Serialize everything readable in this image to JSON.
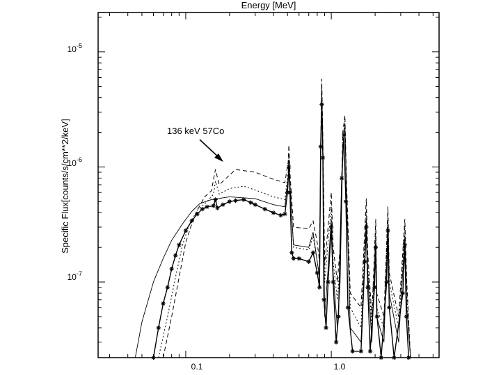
{
  "chart_data": {
    "type": "line",
    "title": "",
    "xlabel": "Energy [MeV]",
    "ylabel": "Specific Flux[counts/s/cm**2/keV]",
    "x_scale": "log",
    "y_scale": "log",
    "xlim": [
      0.025,
      5.5
    ],
    "ylim": [
      2.2e-08,
      2.2e-05
    ],
    "x_ticks": [
      {
        "value": 0.1,
        "label": "0.1"
      },
      {
        "value": 1.0,
        "label": "1.0"
      }
    ],
    "y_ticks": [
      {
        "value": 1e-07,
        "mant": "10",
        "exp": "-7"
      },
      {
        "value": 1e-06,
        "mant": "10",
        "exp": "-6"
      },
      {
        "value": 1e-05,
        "mant": "10",
        "exp": "-5"
      }
    ],
    "grid": false,
    "legend": "none",
    "annotations": [
      {
        "text": "136 keV 57Co",
        "x": 0.155,
        "y": 9e-07
      }
    ],
    "series": [
      {
        "style": "solid",
        "markers": false,
        "points": [
          [
            0.045,
            2.2e-08
          ],
          [
            0.05,
            4.5e-08
          ],
          [
            0.06,
            1e-07
          ],
          [
            0.07,
            1.6e-07
          ],
          [
            0.08,
            2.3e-07
          ],
          [
            0.095,
            3.2e-07
          ],
          [
            0.11,
            4.1e-07
          ],
          [
            0.125,
            4.8e-07
          ],
          [
            0.15,
            5.2e-07
          ],
          [
            0.2,
            5.5e-07
          ],
          [
            0.3,
            5.3e-07
          ],
          [
            0.4,
            4.7e-07
          ],
          [
            0.48,
            4.5e-07
          ],
          [
            0.505,
            8e-07
          ],
          [
            0.511,
            1.15e-06
          ],
          [
            0.52,
            7e-07
          ],
          [
            0.55,
            2.1e-07
          ],
          [
            0.7,
            2e-07
          ],
          [
            0.75,
            2.7e-07
          ],
          [
            0.8,
            1.5e-07
          ],
          [
            0.83,
            1.1e-07
          ],
          [
            0.85,
            2e-06
          ],
          [
            0.86,
            4.8e-06
          ],
          [
            0.875,
            1.5e-06
          ],
          [
            0.9,
            5e-08
          ],
          [
            0.95,
            1.3e-07
          ],
          [
            1.0,
            3.5e-07
          ],
          [
            1.03,
            1.2e-07
          ],
          [
            1.1,
            4e-08
          ],
          [
            1.15,
            1e-07
          ],
          [
            1.2,
            1.5e-06
          ],
          [
            1.24,
            2.3e-06
          ],
          [
            1.27,
            6e-07
          ],
          [
            1.35,
            4e-08
          ],
          [
            1.6,
            3e-08
          ],
          [
            1.74,
            3.5e-07
          ],
          [
            1.78,
            1.2e-07
          ],
          [
            1.9,
            3e-08
          ],
          [
            2.02,
            2.4e-07
          ],
          [
            2.05,
            5e-08
          ],
          [
            2.3,
            3e-08
          ],
          [
            2.45,
            3.3e-07
          ],
          [
            2.5,
            8e-08
          ],
          [
            2.9,
            3e-08
          ],
          [
            3.2,
            2.5e-07
          ],
          [
            3.3,
            6e-08
          ],
          [
            3.5,
            2.2e-08
          ]
        ]
      },
      {
        "style": "dashed",
        "markers": false,
        "points": [
          [
            0.07,
            2.2e-08
          ],
          [
            0.08,
            5e-08
          ],
          [
            0.09,
            1.1e-07
          ],
          [
            0.1,
            2.2e-07
          ],
          [
            0.11,
            3.2e-07
          ],
          [
            0.12,
            4.2e-07
          ],
          [
            0.135,
            5.5e-07
          ],
          [
            0.15,
            6.2e-07
          ],
          [
            0.16,
            9.5e-07
          ],
          [
            0.17,
            7e-07
          ],
          [
            0.2,
            8.5e-07
          ],
          [
            0.22,
            9.5e-07
          ],
          [
            0.3,
            9e-07
          ],
          [
            0.4,
            7.8e-07
          ],
          [
            0.48,
            7.3e-07
          ],
          [
            0.505,
            1.1e-06
          ],
          [
            0.511,
            1.55e-06
          ],
          [
            0.52,
            9e-07
          ],
          [
            0.55,
            3e-07
          ],
          [
            0.7,
            2.9e-07
          ],
          [
            0.75,
            3.4e-07
          ],
          [
            0.8,
            2.2e-07
          ],
          [
            0.83,
            1.5e-07
          ],
          [
            0.85,
            2.5e-06
          ],
          [
            0.86,
            5.8e-06
          ],
          [
            0.875,
            1.8e-06
          ],
          [
            0.9,
            1.4e-07
          ],
          [
            0.95,
            3e-07
          ],
          [
            1.0,
            6e-07
          ],
          [
            1.03,
            2e-07
          ],
          [
            1.1,
            1e-07
          ],
          [
            1.15,
            2e-07
          ],
          [
            1.2,
            2e-06
          ],
          [
            1.24,
            2.8e-06
          ],
          [
            1.27,
            8e-07
          ],
          [
            1.35,
            8e-08
          ],
          [
            1.6,
            6e-08
          ],
          [
            1.74,
            5.3e-07
          ],
          [
            1.78,
            1.8e-07
          ],
          [
            1.9,
            5e-08
          ],
          [
            2.02,
            3.5e-07
          ],
          [
            2.05,
            8e-08
          ],
          [
            2.3,
            5e-08
          ],
          [
            2.45,
            4.5e-07
          ],
          [
            2.5,
            1.2e-07
          ],
          [
            2.9,
            5e-08
          ],
          [
            3.2,
            3.5e-07
          ],
          [
            3.3,
            1e-07
          ],
          [
            3.5,
            2.2e-08
          ]
        ]
      },
      {
        "style": "dotted",
        "markers": false,
        "points": [
          [
            0.065,
            2.2e-08
          ],
          [
            0.075,
            5e-08
          ],
          [
            0.085,
            1.1e-07
          ],
          [
            0.095,
            2.1e-07
          ],
          [
            0.105,
            3.1e-07
          ],
          [
            0.12,
            4.2e-07
          ],
          [
            0.14,
            5e-07
          ],
          [
            0.155,
            5.8e-07
          ],
          [
            0.16,
            7.5e-07
          ],
          [
            0.17,
            5.8e-07
          ],
          [
            0.2,
            6.5e-07
          ],
          [
            0.25,
            6.8e-07
          ],
          [
            0.3,
            6.3e-07
          ],
          [
            0.4,
            5.5e-07
          ],
          [
            0.48,
            5.2e-07
          ],
          [
            0.505,
            9e-07
          ],
          [
            0.511,
            1.25e-06
          ],
          [
            0.52,
            7.5e-07
          ],
          [
            0.55,
            2e-07
          ],
          [
            0.7,
            1.9e-07
          ],
          [
            0.75,
            2.5e-07
          ],
          [
            0.8,
            1.5e-07
          ],
          [
            0.83,
            1.1e-07
          ],
          [
            0.85,
            2.2e-06
          ],
          [
            0.86,
            5.2e-06
          ],
          [
            0.875,
            1.6e-06
          ],
          [
            0.9,
            1e-07
          ],
          [
            0.95,
            2.2e-07
          ],
          [
            1.0,
            4.5e-07
          ],
          [
            1.03,
            1.5e-07
          ],
          [
            1.1,
            7e-08
          ],
          [
            1.15,
            1.5e-07
          ],
          [
            1.2,
            1.7e-06
          ],
          [
            1.24,
            2.5e-06
          ],
          [
            1.27,
            7e-07
          ],
          [
            1.35,
            6e-08
          ],
          [
            1.6,
            4e-08
          ],
          [
            1.74,
            4.2e-07
          ],
          [
            1.78,
            1.4e-07
          ],
          [
            1.9,
            4e-08
          ],
          [
            2.02,
            2.8e-07
          ],
          [
            2.05,
            6e-08
          ],
          [
            2.3,
            4e-08
          ],
          [
            2.45,
            3.8e-07
          ],
          [
            2.5,
            1e-07
          ],
          [
            2.9,
            4e-08
          ],
          [
            3.2,
            3e-07
          ],
          [
            3.3,
            8e-08
          ],
          [
            3.5,
            2.2e-08
          ]
        ]
      },
      {
        "style": "solid-heavy",
        "markers": true,
        "points": [
          [
            0.06,
            2.2e-08
          ],
          [
            0.065,
            4e-08
          ],
          [
            0.07,
            6.5e-08
          ],
          [
            0.075,
            9e-08
          ],
          [
            0.08,
            1.3e-07
          ],
          [
            0.085,
            1.7e-07
          ],
          [
            0.09,
            2.1e-07
          ],
          [
            0.1,
            2.8e-07
          ],
          [
            0.11,
            3.4e-07
          ],
          [
            0.12,
            3.9e-07
          ],
          [
            0.13,
            4.3e-07
          ],
          [
            0.14,
            4.5e-07
          ],
          [
            0.155,
            4.6e-07
          ],
          [
            0.16,
            5.2e-07
          ],
          [
            0.165,
            4.4e-07
          ],
          [
            0.18,
            4.7e-07
          ],
          [
            0.2,
            5e-07
          ],
          [
            0.22,
            5.1e-07
          ],
          [
            0.25,
            5.2e-07
          ],
          [
            0.28,
            4.9e-07
          ],
          [
            0.3,
            4.7e-07
          ],
          [
            0.35,
            4.3e-07
          ],
          [
            0.4,
            4e-07
          ],
          [
            0.45,
            3.8e-07
          ],
          [
            0.48,
            3.9e-07
          ],
          [
            0.5,
            6e-07
          ],
          [
            0.511,
            1e-06
          ],
          [
            0.52,
            6e-07
          ],
          [
            0.535,
            1.8e-07
          ],
          [
            0.55,
            1.6e-07
          ],
          [
            0.6,
            1.6e-07
          ],
          [
            0.7,
            1.5e-07
          ],
          [
            0.75,
            1.8e-07
          ],
          [
            0.8,
            1.2e-07
          ],
          [
            0.83,
            9e-08
          ],
          [
            0.845,
            1.5e-06
          ],
          [
            0.86,
            3.5e-06
          ],
          [
            0.875,
            1.2e-06
          ],
          [
            0.89,
            7e-08
          ],
          [
            0.92,
            4e-08
          ],
          [
            0.95,
            1e-07
          ],
          [
            1.0,
            3e-07
          ],
          [
            1.03,
            1e-07
          ],
          [
            1.08,
            3e-08
          ],
          [
            1.12,
            5e-08
          ],
          [
            1.18,
            8e-07
          ],
          [
            1.22,
            1.9e-06
          ],
          [
            1.26,
            5e-07
          ],
          [
            1.3,
            6e-08
          ],
          [
            1.4,
            2.5e-08
          ],
          [
            1.6,
            2.5e-08
          ],
          [
            1.7,
            1.5e-07
          ],
          [
            1.74,
            3e-07
          ],
          [
            1.78,
            9e-08
          ],
          [
            1.85,
            2.5e-08
          ],
          [
            1.98,
            9e-08
          ],
          [
            2.02,
            2e-07
          ],
          [
            2.06,
            5e-08
          ],
          [
            2.2,
            2.2e-08
          ],
          [
            2.4,
            1e-07
          ],
          [
            2.45,
            2.8e-07
          ],
          [
            2.5,
            6e-08
          ],
          [
            2.7,
            2.2e-08
          ],
          [
            3.1,
            8e-08
          ],
          [
            3.2,
            2.1e-07
          ],
          [
            3.28,
            5e-08
          ],
          [
            3.4,
            2.2e-08
          ]
        ]
      }
    ]
  }
}
